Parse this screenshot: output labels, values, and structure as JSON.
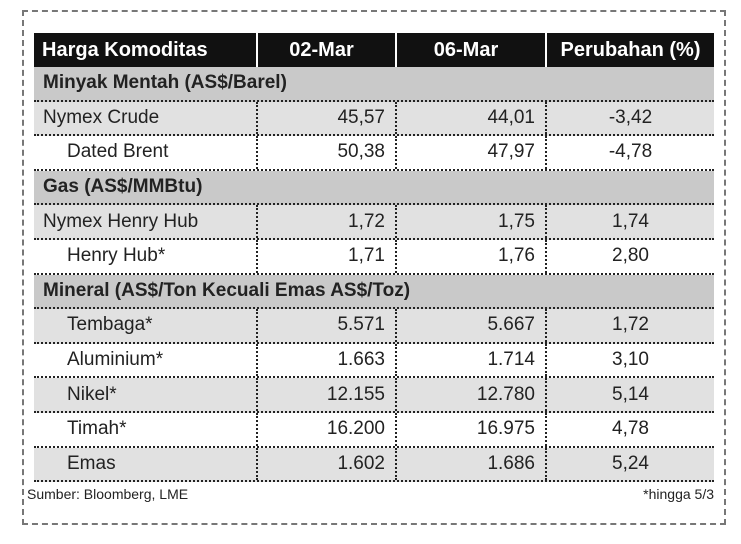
{
  "header": {
    "columns": [
      "Harga Komoditas",
      "02-Mar",
      "06-Mar",
      "Perubahan (%)"
    ]
  },
  "sections": [
    {
      "title": "Minyak Mentah (AS$/Barel)",
      "rows": [
        [
          "Nymex Crude",
          "45,57",
          "44,01",
          "-3,42"
        ],
        [
          "Dated Brent",
          "50,38",
          "47,97",
          "-4,78"
        ]
      ]
    },
    {
      "title": "Gas (AS$/MMBtu)",
      "rows": [
        [
          "Nymex Henry Hub",
          "1,72",
          "1,75",
          "1,74"
        ],
        [
          "Henry Hub*",
          "1,71",
          "1,76",
          "2,80"
        ]
      ]
    },
    {
      "title": "Mineral (AS$/Ton Kecuali Emas AS$/Toz)",
      "rows": [
        [
          "Tembaga*",
          "5.571",
          "5.667",
          "1,72"
        ],
        [
          "Aluminium*",
          "1.663",
          "1.714",
          "3,10"
        ],
        [
          "Nikel*",
          "12.155",
          "12.780",
          "5,14"
        ],
        [
          "Timah*",
          "16.200",
          "16.975",
          "4,78"
        ],
        [
          "Emas",
          "1.602",
          "1.686",
          "5,24"
        ]
      ]
    }
  ],
  "footer": {
    "source": "Sumber: Bloomberg, LME",
    "note": "*hingga 5/3"
  }
}
